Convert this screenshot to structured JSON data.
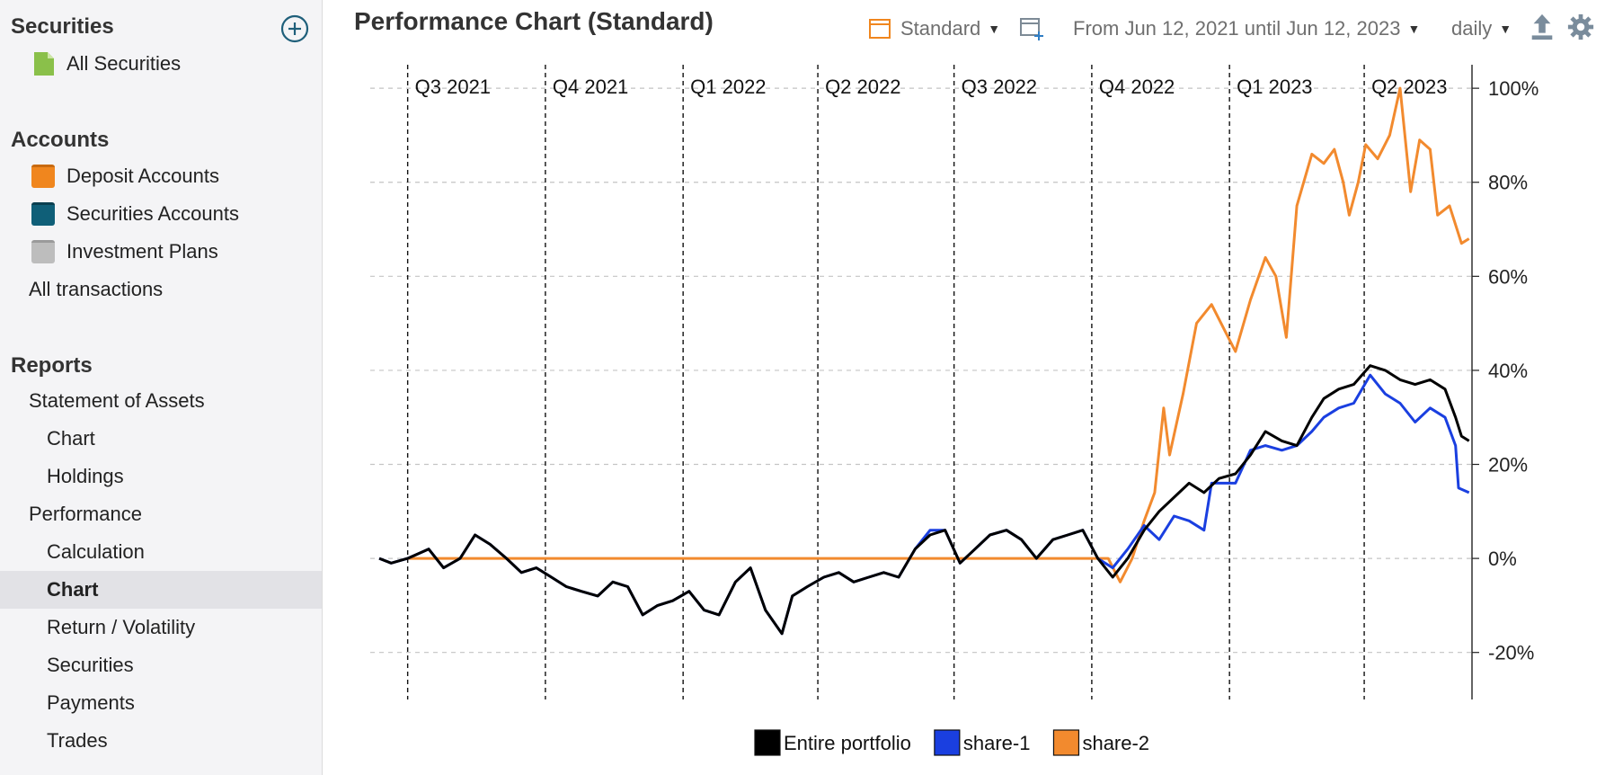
{
  "sidebar": {
    "securities_header": "Securities",
    "all_securities": "All Securities",
    "accounts_header": "Accounts",
    "deposit_accounts": "Deposit Accounts",
    "securities_accounts": "Securities Accounts",
    "investment_plans": "Investment Plans",
    "all_transactions": "All transactions",
    "reports_header": "Reports",
    "statement_of_assets": "Statement of Assets",
    "soa_chart": "Chart",
    "holdings": "Holdings",
    "performance": "Performance",
    "calculation": "Calculation",
    "perf_chart": "Chart",
    "return_volatility": "Return / Volatility",
    "perf_securities": "Securities",
    "payments": "Payments",
    "trades": "Trades"
  },
  "toolbar": {
    "title": "Performance Chart (Standard)",
    "view_label": "Standard",
    "period_label": "From Jun 12, 2021 until Jun 12, 2023",
    "interval_label": "daily"
  },
  "colors": {
    "accent": "#f0861e",
    "portfolio": "#000000",
    "share1": "#1a3fe0",
    "share2": "#f28a2e",
    "deposit_icon": "#f0861e",
    "securities_account_icon": "#0f5f78",
    "plan_icon": "#b8b8b8",
    "security_icon": "#8ac04a"
  },
  "icons": {
    "add": "plus-circle-icon",
    "all_securities": "document-icon",
    "view": "window-icon",
    "new_view": "add-window-icon",
    "export": "export-icon",
    "settings": "gear-icon"
  },
  "chart_data": {
    "type": "line",
    "x_range": [
      "2021-06-12",
      "2023-06-12"
    ],
    "ylim": [
      -0.3,
      1.05
    ],
    "yticks": [
      -0.2,
      0,
      0.2,
      0.4,
      0.6,
      0.8,
      1.0
    ],
    "ytick_labels": [
      "-20%",
      "0%",
      "20%",
      "40%",
      "60%",
      "80%",
      "100%"
    ],
    "quarter_lines": [
      {
        "date": "2021-07-01",
        "label": "Q3 2021"
      },
      {
        "date": "2021-10-01",
        "label": "Q4 2021"
      },
      {
        "date": "2022-01-01",
        "label": "Q1 2022"
      },
      {
        "date": "2022-04-01",
        "label": "Q2 2022"
      },
      {
        "date": "2022-07-01",
        "label": "Q3 2022"
      },
      {
        "date": "2022-10-01",
        "label": "Q4 2022"
      },
      {
        "date": "2023-01-01",
        "label": "Q1 2023"
      },
      {
        "date": "2023-04-01",
        "label": "Q2 2023"
      }
    ],
    "grid": true,
    "legend_position": "bottom",
    "series": [
      {
        "name": "Entire portfolio",
        "color": "#000000",
        "points": [
          [
            "2021-06-12",
            0.0
          ],
          [
            "2021-06-20",
            -0.01
          ],
          [
            "2021-07-01",
            0.0
          ],
          [
            "2021-07-15",
            0.02
          ],
          [
            "2021-07-25",
            -0.02
          ],
          [
            "2021-08-05",
            0.0
          ],
          [
            "2021-08-15",
            0.05
          ],
          [
            "2021-08-25",
            0.03
          ],
          [
            "2021-09-05",
            0.0
          ],
          [
            "2021-09-15",
            -0.03
          ],
          [
            "2021-09-25",
            -0.02
          ],
          [
            "2021-10-05",
            -0.04
          ],
          [
            "2021-10-15",
            -0.06
          ],
          [
            "2021-10-25",
            -0.07
          ],
          [
            "2021-11-05",
            -0.08
          ],
          [
            "2021-11-15",
            -0.05
          ],
          [
            "2021-11-25",
            -0.06
          ],
          [
            "2021-12-05",
            -0.12
          ],
          [
            "2021-12-15",
            -0.1
          ],
          [
            "2021-12-25",
            -0.09
          ],
          [
            "2022-01-05",
            -0.07
          ],
          [
            "2022-01-15",
            -0.11
          ],
          [
            "2022-01-25",
            -0.12
          ],
          [
            "2022-02-05",
            -0.05
          ],
          [
            "2022-02-15",
            -0.02
          ],
          [
            "2022-02-25",
            -0.11
          ],
          [
            "2022-03-08",
            -0.16
          ],
          [
            "2022-03-15",
            -0.08
          ],
          [
            "2022-03-25",
            -0.06
          ],
          [
            "2022-04-05",
            -0.04
          ],
          [
            "2022-04-15",
            -0.03
          ],
          [
            "2022-04-25",
            -0.05
          ],
          [
            "2022-05-05",
            -0.04
          ],
          [
            "2022-05-15",
            -0.03
          ],
          [
            "2022-05-25",
            -0.04
          ],
          [
            "2022-06-05",
            0.02
          ],
          [
            "2022-06-15",
            0.05
          ],
          [
            "2022-06-25",
            0.06
          ],
          [
            "2022-07-05",
            -0.01
          ],
          [
            "2022-07-15",
            0.02
          ],
          [
            "2022-07-25",
            0.05
          ],
          [
            "2022-08-05",
            0.06
          ],
          [
            "2022-08-15",
            0.04
          ],
          [
            "2022-08-25",
            0.0
          ],
          [
            "2022-09-05",
            0.04
          ],
          [
            "2022-09-15",
            0.05
          ],
          [
            "2022-09-25",
            0.06
          ],
          [
            "2022-10-05",
            0.0
          ],
          [
            "2022-10-15",
            -0.04
          ],
          [
            "2022-10-25",
            0.0
          ],
          [
            "2022-11-05",
            0.06
          ],
          [
            "2022-11-15",
            0.1
          ],
          [
            "2022-11-25",
            0.13
          ],
          [
            "2022-12-05",
            0.16
          ],
          [
            "2022-12-15",
            0.14
          ],
          [
            "2022-12-25",
            0.17
          ],
          [
            "2023-01-05",
            0.18
          ],
          [
            "2023-01-15",
            0.22
          ],
          [
            "2023-01-25",
            0.27
          ],
          [
            "2023-02-05",
            0.25
          ],
          [
            "2023-02-15",
            0.24
          ],
          [
            "2023-02-25",
            0.3
          ],
          [
            "2023-03-05",
            0.34
          ],
          [
            "2023-03-15",
            0.36
          ],
          [
            "2023-03-25",
            0.37
          ],
          [
            "2023-04-05",
            0.41
          ],
          [
            "2023-04-15",
            0.4
          ],
          [
            "2023-04-25",
            0.38
          ],
          [
            "2023-05-05",
            0.37
          ],
          [
            "2023-05-15",
            0.38
          ],
          [
            "2023-05-25",
            0.36
          ],
          [
            "2023-06-01",
            0.3
          ],
          [
            "2023-06-05",
            0.26
          ],
          [
            "2023-06-10",
            0.25
          ]
        ]
      },
      {
        "name": "share-1",
        "color": "#1a3fe0",
        "points": [
          [
            "2021-06-12",
            0.0
          ],
          [
            "2021-06-20",
            -0.01
          ],
          [
            "2021-07-01",
            0.0
          ],
          [
            "2021-07-15",
            0.02
          ],
          [
            "2021-07-25",
            -0.02
          ],
          [
            "2021-08-05",
            0.0
          ],
          [
            "2021-08-15",
            0.05
          ],
          [
            "2021-08-25",
            0.03
          ],
          [
            "2021-09-05",
            0.0
          ],
          [
            "2021-09-15",
            -0.03
          ],
          [
            "2021-09-25",
            -0.02
          ],
          [
            "2021-10-05",
            -0.04
          ],
          [
            "2021-10-15",
            -0.06
          ],
          [
            "2021-10-25",
            -0.07
          ],
          [
            "2021-11-05",
            -0.08
          ],
          [
            "2021-11-15",
            -0.05
          ],
          [
            "2021-11-25",
            -0.06
          ],
          [
            "2021-12-05",
            -0.12
          ],
          [
            "2021-12-15",
            -0.1
          ],
          [
            "2021-12-25",
            -0.09
          ],
          [
            "2022-01-05",
            -0.07
          ],
          [
            "2022-01-15",
            -0.11
          ],
          [
            "2022-01-25",
            -0.12
          ],
          [
            "2022-02-05",
            -0.05
          ],
          [
            "2022-02-15",
            -0.02
          ],
          [
            "2022-02-25",
            -0.11
          ],
          [
            "2022-03-08",
            -0.16
          ],
          [
            "2022-03-15",
            -0.08
          ],
          [
            "2022-03-25",
            -0.06
          ],
          [
            "2022-04-05",
            -0.04
          ],
          [
            "2022-04-15",
            -0.03
          ],
          [
            "2022-04-25",
            -0.05
          ],
          [
            "2022-05-05",
            -0.04
          ],
          [
            "2022-05-15",
            -0.03
          ],
          [
            "2022-05-25",
            -0.04
          ],
          [
            "2022-06-05",
            0.02
          ],
          [
            "2022-06-15",
            0.06
          ],
          [
            "2022-06-25",
            0.06
          ],
          [
            "2022-07-05",
            -0.01
          ],
          [
            "2022-07-15",
            0.02
          ],
          [
            "2022-07-25",
            0.05
          ],
          [
            "2022-08-05",
            0.06
          ],
          [
            "2022-08-15",
            0.04
          ],
          [
            "2022-08-25",
            0.0
          ],
          [
            "2022-09-05",
            0.04
          ],
          [
            "2022-09-15",
            0.05
          ],
          [
            "2022-09-25",
            0.06
          ],
          [
            "2022-10-05",
            0.0
          ],
          [
            "2022-10-15",
            -0.02
          ],
          [
            "2022-10-25",
            0.02
          ],
          [
            "2022-11-05",
            0.07
          ],
          [
            "2022-11-15",
            0.04
          ],
          [
            "2022-11-25",
            0.09
          ],
          [
            "2022-12-05",
            0.08
          ],
          [
            "2022-12-15",
            0.06
          ],
          [
            "2022-12-20",
            0.16
          ],
          [
            "2023-01-05",
            0.16
          ],
          [
            "2023-01-15",
            0.23
          ],
          [
            "2023-01-25",
            0.24
          ],
          [
            "2023-02-05",
            0.23
          ],
          [
            "2023-02-15",
            0.24
          ],
          [
            "2023-02-25",
            0.27
          ],
          [
            "2023-03-05",
            0.3
          ],
          [
            "2023-03-15",
            0.32
          ],
          [
            "2023-03-25",
            0.33
          ],
          [
            "2023-04-05",
            0.39
          ],
          [
            "2023-04-15",
            0.35
          ],
          [
            "2023-04-25",
            0.33
          ],
          [
            "2023-05-05",
            0.29
          ],
          [
            "2023-05-15",
            0.32
          ],
          [
            "2023-05-25",
            0.3
          ],
          [
            "2023-06-01",
            0.24
          ],
          [
            "2023-06-03",
            0.15
          ],
          [
            "2023-06-10",
            0.14
          ]
        ]
      },
      {
        "name": "share-2",
        "color": "#f28a2e",
        "points": [
          [
            "2021-07-01",
            0.0
          ],
          [
            "2022-10-12",
            0.0
          ],
          [
            "2022-10-20",
            -0.05
          ],
          [
            "2022-10-28",
            0.0
          ],
          [
            "2022-11-05",
            0.08
          ],
          [
            "2022-11-12",
            0.14
          ],
          [
            "2022-11-18",
            0.32
          ],
          [
            "2022-11-22",
            0.22
          ],
          [
            "2022-12-01",
            0.35
          ],
          [
            "2022-12-10",
            0.5
          ],
          [
            "2022-12-20",
            0.54
          ],
          [
            "2022-12-28",
            0.49
          ],
          [
            "2023-01-05",
            0.44
          ],
          [
            "2023-01-15",
            0.55
          ],
          [
            "2023-01-25",
            0.64
          ],
          [
            "2023-02-01",
            0.6
          ],
          [
            "2023-02-08",
            0.47
          ],
          [
            "2023-02-15",
            0.75
          ],
          [
            "2023-02-25",
            0.86
          ],
          [
            "2023-03-05",
            0.84
          ],
          [
            "2023-03-12",
            0.87
          ],
          [
            "2023-03-18",
            0.8
          ],
          [
            "2023-03-22",
            0.73
          ],
          [
            "2023-03-28",
            0.8
          ],
          [
            "2023-04-02",
            0.88
          ],
          [
            "2023-04-10",
            0.85
          ],
          [
            "2023-04-18",
            0.9
          ],
          [
            "2023-04-25",
            1.0
          ],
          [
            "2023-05-02",
            0.78
          ],
          [
            "2023-05-08",
            0.89
          ],
          [
            "2023-05-15",
            0.87
          ],
          [
            "2023-05-20",
            0.73
          ],
          [
            "2023-05-28",
            0.75
          ],
          [
            "2023-06-05",
            0.67
          ],
          [
            "2023-06-10",
            0.68
          ]
        ]
      }
    ]
  }
}
